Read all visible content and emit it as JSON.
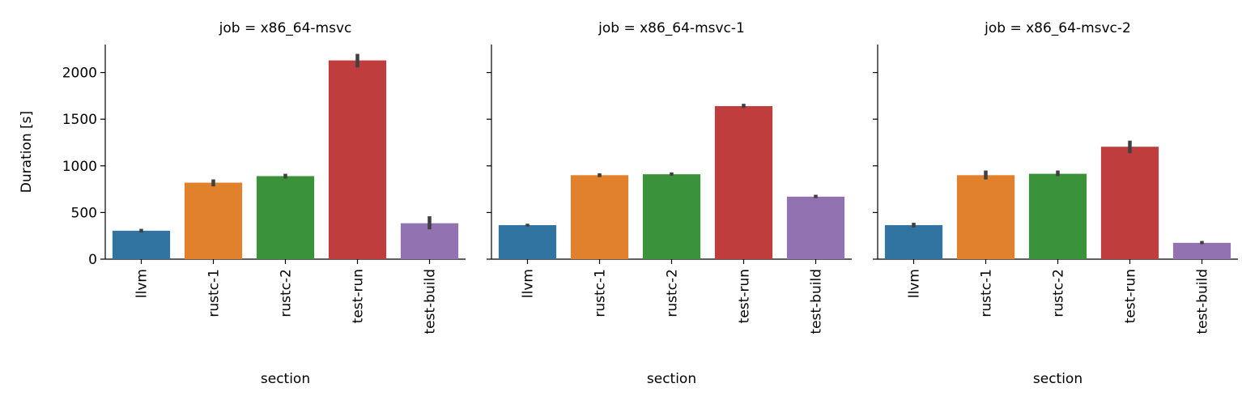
{
  "chart_data": {
    "type": "bar",
    "ylabel": "Duration [s]",
    "xlabel": "section",
    "ylim": [
      0,
      2300
    ],
    "yticks": [
      0,
      500,
      1000,
      1500,
      2000
    ],
    "categories": [
      "llvm",
      "rustc-1",
      "rustc-2",
      "test-run",
      "test-build"
    ],
    "colors": [
      "#3274a1",
      "#e1812c",
      "#3a923a",
      "#c03d3e",
      "#9372b2"
    ],
    "grid": false,
    "legend": "none",
    "panels": [
      {
        "title": "job = x86_64-msvc",
        "values": [
          305,
          820,
          890,
          2130,
          385
        ],
        "error_low": [
          285,
          780,
          865,
          2055,
          320
        ],
        "error_high": [
          325,
          855,
          915,
          2200,
          460
        ]
      },
      {
        "title": "job = x86_64-msvc-1",
        "values": [
          365,
          900,
          910,
          1640,
          670
        ],
        "error_low": [
          350,
          880,
          895,
          1620,
          655
        ],
        "error_high": [
          380,
          920,
          930,
          1665,
          690
        ]
      },
      {
        "title": "job = x86_64-msvc-2",
        "values": [
          365,
          900,
          915,
          1205,
          175
        ],
        "error_low": [
          340,
          855,
          890,
          1135,
          160
        ],
        "error_high": [
          390,
          950,
          950,
          1270,
          195
        ]
      }
    ]
  }
}
